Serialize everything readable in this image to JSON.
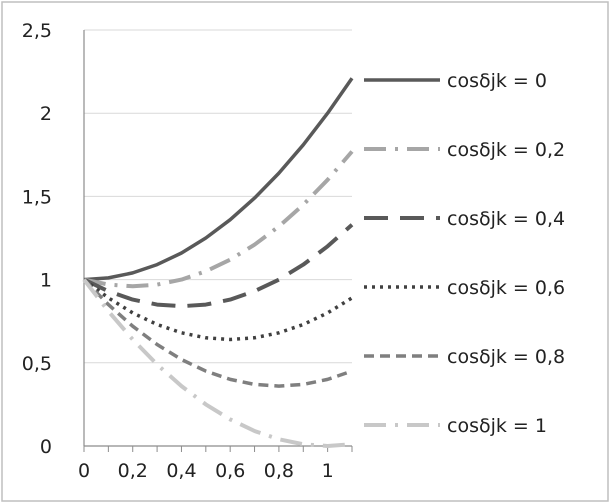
{
  "chart_data": {
    "type": "line",
    "title": "",
    "xlabel": "",
    "ylabel": "",
    "xlim": [
      0,
      1.1
    ],
    "ylim": [
      0,
      2.5
    ],
    "x_ticks": [
      0,
      0.2,
      0.4,
      0.6,
      0.8,
      1
    ],
    "x_tick_labels": [
      "0",
      "0,2",
      "0,4",
      "0,6",
      "0,8",
      "1"
    ],
    "y_ticks": [
      0,
      0.5,
      1,
      1.5,
      2,
      2.5
    ],
    "y_tick_labels": [
      "0",
      "0,5",
      "1",
      "1,5",
      "2",
      "2,5"
    ],
    "grid": "horizontal",
    "legend_position": "right",
    "x": [
      0,
      0.1,
      0.2,
      0.3,
      0.4,
      0.5,
      0.6,
      0.7,
      0.8,
      0.9,
      1.0,
      1.1
    ],
    "series": [
      {
        "name": "cosδjk = 0",
        "color": "#595959",
        "dash": "solid",
        "values": [
          1.0,
          1.01,
          1.04,
          1.09,
          1.16,
          1.25,
          1.36,
          1.49,
          1.64,
          1.81,
          2.0,
          2.21
        ]
      },
      {
        "name": "cosδjk = 0,2",
        "color": "#a6a6a6",
        "dash": "dashdot",
        "values": [
          1.0,
          0.97,
          0.96,
          0.97,
          1.0,
          1.05,
          1.12,
          1.21,
          1.32,
          1.45,
          1.6,
          1.77
        ]
      },
      {
        "name": "cosδjk = 0,4",
        "color": "#595959",
        "dash": "longdash",
        "values": [
          1.0,
          0.93,
          0.88,
          0.85,
          0.84,
          0.85,
          0.88,
          0.93,
          1.0,
          1.09,
          1.2,
          1.33
        ]
      },
      {
        "name": "cosδjk = 0,6",
        "color": "#404040",
        "dash": "dot",
        "values": [
          1.0,
          0.89,
          0.8,
          0.73,
          0.68,
          0.65,
          0.64,
          0.65,
          0.68,
          0.73,
          0.8,
          0.89
        ]
      },
      {
        "name": "cosδjk = 0,8",
        "color": "#7f7f7f",
        "dash": "dash",
        "values": [
          1.0,
          0.85,
          0.72,
          0.61,
          0.52,
          0.45,
          0.4,
          0.37,
          0.36,
          0.37,
          0.4,
          0.45
        ]
      },
      {
        "name": "cosδjk = 1",
        "color": "#c8c8c8",
        "dash": "dashdot",
        "values": [
          1.0,
          0.81,
          0.64,
          0.49,
          0.36,
          0.25,
          0.16,
          0.09,
          0.04,
          0.01,
          0.0,
          0.01
        ]
      }
    ]
  }
}
